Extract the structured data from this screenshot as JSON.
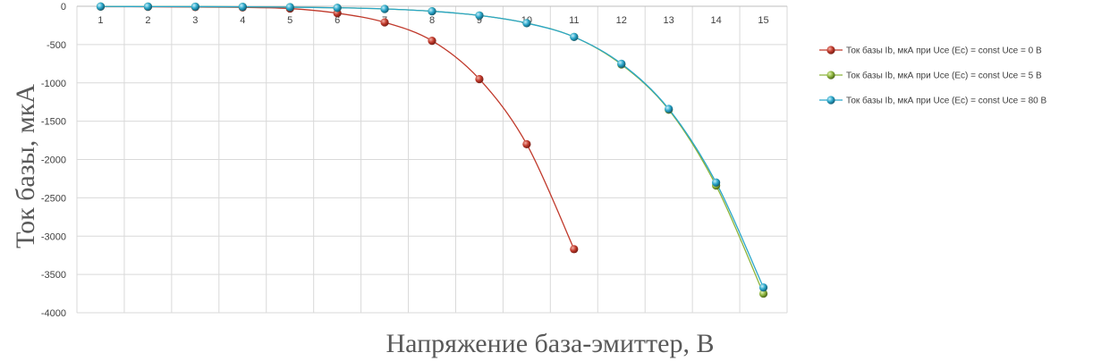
{
  "chart_data": {
    "type": "line",
    "title": "",
    "xlabel": "Напряжение база-эмиттер, В",
    "ylabel": "Ток базы, мкА",
    "categories": [
      "1",
      "2",
      "3",
      "4",
      "5",
      "6",
      "7",
      "8",
      "9",
      "10",
      "11",
      "12",
      "13",
      "14",
      "15"
    ],
    "ylim": [
      -4000,
      0
    ],
    "yticks": [
      0,
      -500,
      -1000,
      -1500,
      -2000,
      -2500,
      -3000,
      -3500,
      -4000
    ],
    "grid": true,
    "legend_position": "right",
    "series": [
      {
        "name": "Ток базы  Ib, мкА при Uce (Ec) = const Uce = 0 В",
        "color": "#c0392b",
        "values": [
          -5,
          -7,
          -10,
          -15,
          -30,
          -90,
          -210,
          -450,
          -950,
          -1800,
          -3170,
          null,
          null,
          null,
          null
        ]
      },
      {
        "name": "Ток базы  Ib, мкА при Uce (Ec) = const Uce = 5 В",
        "color": "#8cb43c",
        "values": [
          -3,
          -4,
          -5,
          -7,
          -12,
          -20,
          -35,
          -65,
          -120,
          -220,
          -400,
          -760,
          -1350,
          -2340,
          -3750
        ]
      },
      {
        "name": "Ток базы  Ib, мкА при Uce (Ec) = const Uce = 80  В",
        "color": "#2aa6c9",
        "values": [
          -3,
          -4,
          -5,
          -7,
          -12,
          -20,
          -35,
          -65,
          -120,
          -220,
          -400,
          -750,
          -1340,
          -2300,
          -3670
        ]
      }
    ]
  }
}
